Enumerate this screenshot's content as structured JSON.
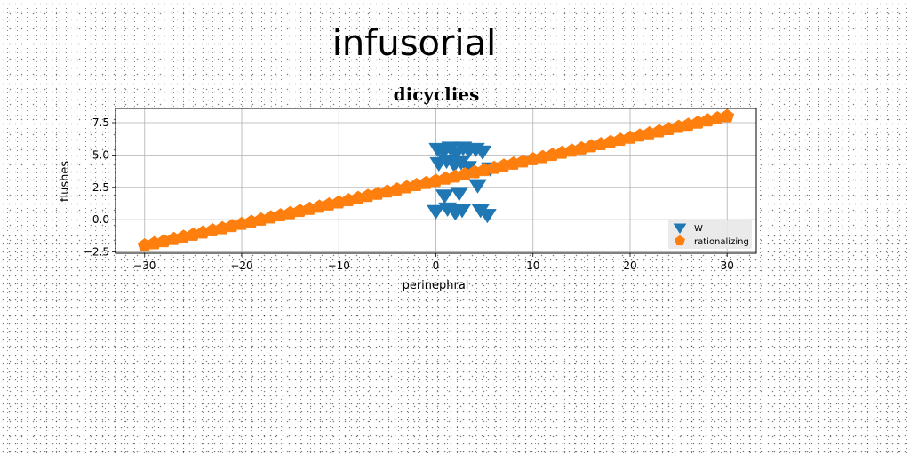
{
  "page_title": "infusorial",
  "chart_data": {
    "type": "scatter",
    "title": "dicyclies",
    "xlabel": "perinephral",
    "ylabel": "flushes",
    "xlim": [
      -33,
      33
    ],
    "ylim": [
      -2.6,
      8.6
    ],
    "xticks": [
      -30,
      -20,
      -10,
      0,
      10,
      20,
      30
    ],
    "xtick_labels": [
      "−30",
      "−20",
      "−10",
      "0",
      "10",
      "20",
      "30"
    ],
    "yticks": [
      -2.5,
      0.0,
      2.5,
      5.0,
      7.5
    ],
    "ytick_labels": [
      "−2.5",
      "0.0",
      "2.5",
      "5.0",
      "7.5"
    ],
    "grid": true,
    "legend_position": "bottom-right",
    "series": [
      {
        "name": "W",
        "marker": "triangle-down",
        "color": "#1f77b4",
        "x": [
          0.2,
          0.8,
          1.5,
          2.1,
          2.8,
          3.4,
          4.1,
          4.8,
          0.3,
          1.1,
          1.9,
          2.6,
          3.3,
          5.6,
          0.9,
          2.4,
          4.3,
          0.0,
          1.2,
          2.0,
          2.7,
          4.6,
          5.3
        ],
        "y": [
          5.5,
          5.3,
          5.6,
          5.2,
          5.6,
          5.4,
          5.5,
          5.3,
          4.4,
          4.6,
          4.3,
          4.5,
          4.1,
          4.0,
          1.9,
          2.1,
          2.7,
          0.7,
          0.9,
          0.6,
          0.8,
          0.8,
          0.4
        ]
      },
      {
        "name": "rationalizing",
        "marker": "pentagon",
        "color": "#ff7f0e",
        "x": [
          -30.0,
          -29.0,
          -28.0,
          -27.0,
          -26.0,
          -25.0,
          -24.0,
          -23.0,
          -22.0,
          -21.0,
          -20.0,
          -19.0,
          -18.0,
          -17.0,
          -16.0,
          -15.0,
          -14.0,
          -13.0,
          -12.0,
          -11.0,
          -10.0,
          -9.0,
          -8.0,
          -7.0,
          -6.0,
          -5.0,
          -4.0,
          -3.0,
          -2.0,
          -1.0,
          0.0,
          1.0,
          2.0,
          3.0,
          4.0,
          5.0,
          6.0,
          7.0,
          8.0,
          9.0,
          10.0,
          11.0,
          12.0,
          13.0,
          14.0,
          15.0,
          16.0,
          17.0,
          18.0,
          19.0,
          20.0,
          21.0,
          22.0,
          23.0,
          24.0,
          25.0,
          26.0,
          27.0,
          28.0,
          29.0,
          30.0
        ],
        "y": [
          -2.0,
          -1.83,
          -1.67,
          -1.5,
          -1.33,
          -1.17,
          -1.0,
          -0.83,
          -0.67,
          -0.5,
          -0.33,
          -0.17,
          0.0,
          0.17,
          0.33,
          0.5,
          0.67,
          0.83,
          1.0,
          1.17,
          1.33,
          1.5,
          1.67,
          1.83,
          2.0,
          2.17,
          2.33,
          2.5,
          2.67,
          2.83,
          3.0,
          3.17,
          3.33,
          3.5,
          3.67,
          3.83,
          4.0,
          4.17,
          4.33,
          4.5,
          4.67,
          4.83,
          5.0,
          5.17,
          5.33,
          5.5,
          5.67,
          5.83,
          6.0,
          6.17,
          6.33,
          6.5,
          6.67,
          6.83,
          7.0,
          7.17,
          7.33,
          7.5,
          7.67,
          7.83,
          8.0
        ]
      }
    ]
  }
}
